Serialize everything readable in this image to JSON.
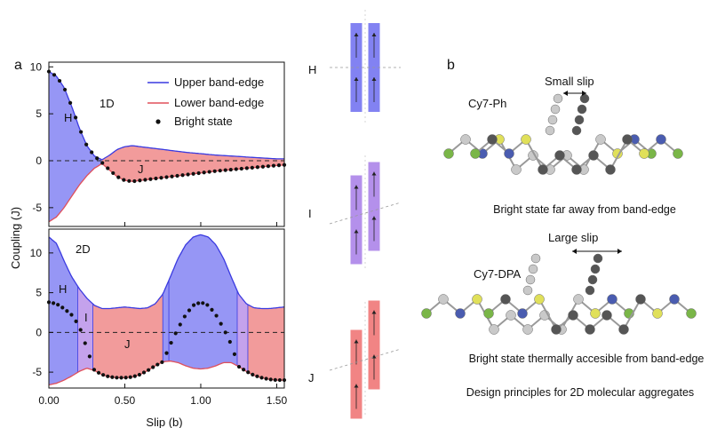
{
  "panel_a": "a",
  "panel_b": "b",
  "colors": {
    "upper_fill": "#9696f5",
    "upper_line": "#3a3ae0",
    "lower_fill": "#f29b9b",
    "lower_line": "#e0505a",
    "i_fill": "#c4a2ec",
    "dot": "#111111",
    "stick_h": "#6c6cf0",
    "stick_i": "#a77de8",
    "stick_j": "#ef6e6e",
    "atom_dark": "#555555",
    "atom_light": "#c9c9c9",
    "atom_s": "#e0e05a",
    "atom_cl": "#7ab648",
    "atom_n": "#4a5cb0"
  },
  "chart_data": [
    {
      "type": "area",
      "panel": "1D",
      "xlabel": "",
      "ylabel": "Coupling (J)",
      "xlim": [
        0,
        1.55
      ],
      "ylim": [
        -7,
        10.5
      ],
      "yticks": [
        -5,
        0,
        5,
        10
      ],
      "grid": false,
      "legend": "top-right",
      "legend_entries": [
        "Upper band-edge",
        "Lower band-edge",
        "Bright state"
      ],
      "region_labels": [
        "H",
        "J"
      ],
      "series": [
        {
          "name": "Upper band-edge",
          "x": [
            0,
            0.05,
            0.1,
            0.15,
            0.2,
            0.25,
            0.3,
            0.35,
            0.4,
            0.45,
            0.5,
            0.55,
            0.6,
            0.7,
            0.8,
            0.9,
            1.0,
            1.1,
            1.2,
            1.3,
            1.4,
            1.5,
            1.55
          ],
          "y": [
            9.5,
            9.0,
            7.8,
            5.8,
            3.5,
            1.6,
            0.5,
            0.1,
            0.6,
            1.2,
            1.5,
            1.6,
            1.5,
            1.3,
            1.1,
            0.9,
            0.75,
            0.6,
            0.5,
            0.4,
            0.3,
            0.2,
            0.2
          ]
        },
        {
          "name": "Lower band-edge",
          "x": [
            0,
            0.05,
            0.1,
            0.15,
            0.2,
            0.25,
            0.3,
            0.35,
            0.4,
            0.45,
            0.5,
            0.55,
            0.6,
            0.7,
            0.8,
            0.9,
            1.0,
            1.1,
            1.2,
            1.3,
            1.4,
            1.5,
            1.55
          ],
          "y": [
            -6.5,
            -6.0,
            -5.0,
            -3.8,
            -2.6,
            -1.6,
            -0.8,
            -0.3,
            -1.0,
            -1.7,
            -2.1,
            -2.2,
            -2.1,
            -1.9,
            -1.7,
            -1.5,
            -1.3,
            -1.1,
            -0.95,
            -0.8,
            -0.65,
            -0.5,
            -0.45
          ]
        },
        {
          "name": "Bright state",
          "x": [
            0,
            0.05,
            0.1,
            0.15,
            0.2,
            0.25,
            0.3,
            0.35,
            0.4,
            0.45,
            0.5,
            0.55,
            0.6,
            0.7,
            0.8,
            0.9,
            1.0,
            1.1,
            1.2,
            1.3,
            1.4,
            1.5,
            1.55
          ],
          "y": [
            9.5,
            9.0,
            7.8,
            5.8,
            3.5,
            1.6,
            0.5,
            -0.2,
            -1.0,
            -1.7,
            -2.1,
            -2.2,
            -2.1,
            -1.9,
            -1.7,
            -1.5,
            -1.3,
            -1.1,
            -0.95,
            -0.8,
            -0.65,
            -0.5,
            -0.45
          ]
        }
      ]
    },
    {
      "type": "area",
      "panel": "2D",
      "xlabel": "Slip (b)",
      "ylabel": "Coupling (J)",
      "xlim": [
        0,
        1.55
      ],
      "ylim": [
        -7,
        13
      ],
      "yticks": [
        -5,
        0,
        5,
        10
      ],
      "xticks": [
        0.0,
        0.5,
        1.0,
        1.5
      ],
      "xtick_labels": [
        "0.00",
        "0.50",
        "1.00",
        "1.50"
      ],
      "grid": false,
      "region_labels": [
        "H",
        "I",
        "J"
      ],
      "regions": [
        {
          "label": "H",
          "x0": 0.0,
          "x1": 0.19
        },
        {
          "label": "I",
          "x0": 0.19,
          "x1": 0.29
        },
        {
          "label": "J",
          "x0": 0.29,
          "x1": 0.75
        },
        {
          "label": "H",
          "x0": 0.75,
          "x1": 0.79
        },
        {
          "label": "",
          "x0": 0.79,
          "x1": 1.24
        },
        {
          "label": "I",
          "x0": 1.24,
          "x1": 1.31
        },
        {
          "label": "J",
          "x0": 1.31,
          "x1": 1.55
        }
      ],
      "series": [
        {
          "name": "Upper band-edge",
          "x": [
            0,
            0.05,
            0.1,
            0.15,
            0.2,
            0.25,
            0.3,
            0.35,
            0.4,
            0.45,
            0.5,
            0.55,
            0.6,
            0.65,
            0.7,
            0.75,
            0.8,
            0.85,
            0.9,
            0.95,
            1.0,
            1.05,
            1.1,
            1.15,
            1.2,
            1.25,
            1.3,
            1.35,
            1.4,
            1.45,
            1.5,
            1.55
          ],
          "y": [
            12.0,
            11.2,
            9.0,
            7.0,
            5.5,
            4.3,
            3.4,
            3.0,
            3.0,
            3.1,
            3.2,
            3.1,
            3.0,
            3.1,
            3.6,
            4.8,
            7.0,
            9.3,
            11.0,
            12.0,
            12.3,
            12.0,
            11.0,
            9.3,
            7.0,
            4.8,
            3.6,
            3.1,
            3.0,
            3.0,
            3.1,
            3.2
          ]
        },
        {
          "name": "Lower band-edge",
          "x": [
            0,
            0.05,
            0.1,
            0.15,
            0.2,
            0.25,
            0.3,
            0.35,
            0.4,
            0.45,
            0.5,
            0.55,
            0.6,
            0.65,
            0.7,
            0.75,
            0.8,
            0.85,
            0.9,
            0.95,
            1.0,
            1.05,
            1.1,
            1.15,
            1.2,
            1.25,
            1.3,
            1.35,
            1.4,
            1.45,
            1.5,
            1.55
          ],
          "y": [
            -6.6,
            -6.4,
            -6.0,
            -5.5,
            -4.9,
            -4.5,
            -4.8,
            -5.3,
            -5.6,
            -5.7,
            -5.7,
            -5.6,
            -5.3,
            -4.8,
            -4.2,
            -3.7,
            -3.6,
            -3.8,
            -4.2,
            -4.5,
            -4.6,
            -4.5,
            -4.2,
            -3.8,
            -3.8,
            -4.3,
            -4.9,
            -5.4,
            -5.7,
            -5.9,
            -6.0,
            -6.0
          ]
        },
        {
          "name": "Bright state",
          "x": [
            0,
            0.05,
            0.1,
            0.15,
            0.2,
            0.25,
            0.3,
            0.35,
            0.4,
            0.45,
            0.5,
            0.55,
            0.6,
            0.65,
            0.7,
            0.75,
            0.8,
            0.85,
            0.9,
            0.95,
            1.0,
            1.05,
            1.1,
            1.15,
            1.2,
            1.25,
            1.3,
            1.35,
            1.4,
            1.45,
            1.5,
            1.55
          ],
          "y": [
            3.8,
            3.6,
            3.0,
            2.2,
            0.8,
            -2.0,
            -4.8,
            -5.3,
            -5.6,
            -5.7,
            -5.7,
            -5.6,
            -5.3,
            -4.8,
            -4.2,
            -3.7,
            -1.5,
            0.5,
            2.2,
            3.4,
            3.8,
            3.4,
            2.2,
            0.5,
            -1.5,
            -4.3,
            -4.9,
            -5.4,
            -5.7,
            -5.9,
            -6.0,
            -6.0
          ]
        }
      ]
    }
  ],
  "sticks": [
    {
      "label": "H",
      "slip": 0.0,
      "tilt": 0.0
    },
    {
      "label": "I",
      "slip": 0.25,
      "tilt": 0.0
    },
    {
      "label": "J",
      "slip": 0.55,
      "tilt": 0.0
    }
  ],
  "molecules": [
    {
      "name": "Cy7-Ph",
      "slip_text": "Small slip",
      "caption": "Bright state far away from band-edge"
    },
    {
      "name": "Cy7-DPA",
      "slip_text": "Large slip",
      "caption": "Bright state thermally accesible from band-edge"
    }
  ],
  "footer_caption": "Design principles for 2D molecular aggregates"
}
